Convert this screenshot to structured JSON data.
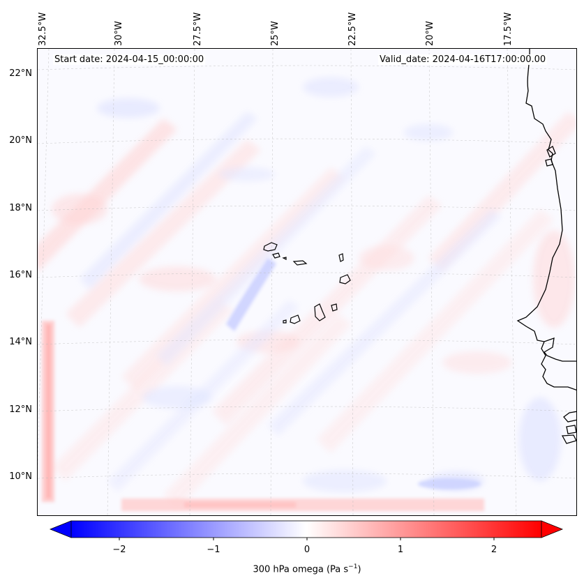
{
  "header": {
    "start_date": "Start date: 2024-04-15_00:00:00",
    "valid_date": "Valid_date: 2024-04-16T17:00:00.00"
  },
  "map": {
    "lon_labels": [
      "32.5°W",
      "30°W",
      "27.5°W",
      "25°W",
      "22.5°W",
      "20°W",
      "17.5°W"
    ],
    "lat_labels": [
      "22°N",
      "20°N",
      "18°N",
      "16°N",
      "14°N",
      "12°N",
      "10°N"
    ],
    "variable": "300 hPa omega",
    "colors": {
      "negative": "#0000ff",
      "positive": "#ff0000",
      "neutral": "#ffffff",
      "coastline": "#000000"
    }
  },
  "colorbar": {
    "ticks": [
      "−2",
      "−1",
      "0",
      "1",
      "2"
    ],
    "label": "300 hPa omega (Pa s",
    "label_exp": "−1",
    "label_end": ")",
    "vmin": -2.6,
    "vmax": 2.6,
    "colormap": "bwr"
  }
}
